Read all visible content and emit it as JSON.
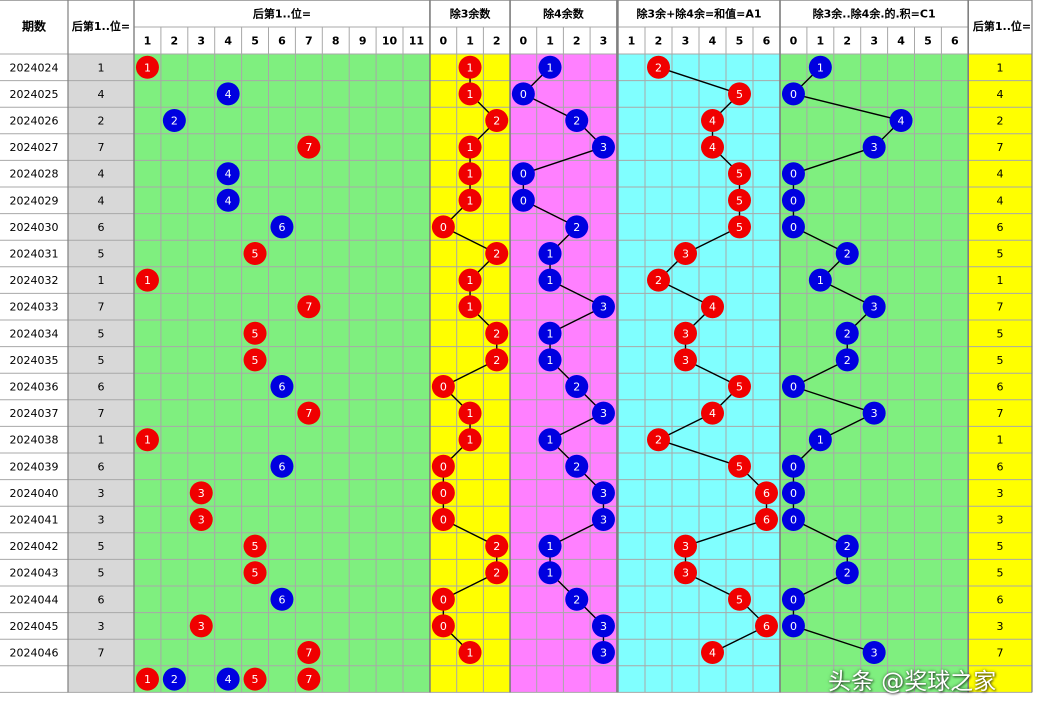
{
  "headers": {
    "period": "期数",
    "value": "后第1..位=",
    "sec_main": "后第1..位=",
    "sec_mod3": "除3余数",
    "sec_mod4": "除4余数",
    "sec_a1": "除3余+除4余=和值=A1",
    "sec_c1": "除3余..除4余.的.积=C1",
    "sec_right": "后第1..位="
  },
  "columns": {
    "main": [
      "1",
      "2",
      "3",
      "4",
      "5",
      "6",
      "7",
      "8",
      "9",
      "10",
      "11"
    ],
    "mod3": [
      "0",
      "1",
      "2"
    ],
    "mod4": [
      "0",
      "1",
      "2",
      "3"
    ],
    "a1": [
      "1",
      "2",
      "3",
      "4",
      "5",
      "6"
    ],
    "c1": [
      "0",
      "1",
      "2",
      "3",
      "4",
      "5",
      "6"
    ]
  },
  "colors": {
    "main_bg": "#7fef7f",
    "mod3_bg": "#ffff00",
    "mod4_bg": "#ff80ff",
    "a1_bg": "#80ffff",
    "c1_bg": "#7fef7f",
    "right_bg": "#ffff00",
    "grey_col": "#d8d8d8",
    "ball_red": "#f00000",
    "ball_blue": "#0000e0",
    "line": "#000000"
  },
  "chart_data": {
    "type": "table",
    "periods": [
      "2024024",
      "2024025",
      "2024026",
      "2024027",
      "2024028",
      "2024029",
      "2024030",
      "2024031",
      "2024032",
      "2024033",
      "2024034",
      "2024035",
      "2024036",
      "2024037",
      "2024038",
      "2024039",
      "2024040",
      "2024041",
      "2024042",
      "2024043",
      "2024044",
      "2024045",
      "2024046"
    ],
    "values": [
      1,
      4,
      2,
      7,
      4,
      4,
      6,
      5,
      1,
      7,
      5,
      5,
      6,
      7,
      1,
      6,
      3,
      3,
      5,
      5,
      6,
      3,
      7
    ],
    "mod3": [
      1,
      1,
      2,
      1,
      1,
      1,
      0,
      2,
      1,
      1,
      2,
      2,
      0,
      1,
      1,
      0,
      0,
      0,
      2,
      2,
      0,
      0,
      1
    ],
    "mod4": [
      1,
      0,
      2,
      3,
      0,
      0,
      2,
      1,
      1,
      3,
      1,
      1,
      2,
      3,
      1,
      2,
      3,
      3,
      1,
      1,
      2,
      3,
      3
    ],
    "a1": [
      2,
      5,
      4,
      4,
      5,
      5,
      5,
      3,
      2,
      4,
      3,
      3,
      5,
      4,
      2,
      5,
      6,
      6,
      3,
      3,
      5,
      6,
      4
    ],
    "c1": [
      1,
      0,
      4,
      3,
      0,
      0,
      0,
      2,
      1,
      3,
      2,
      2,
      0,
      3,
      1,
      0,
      0,
      0,
      2,
      2,
      0,
      0,
      3
    ],
    "summary_row": [
      1,
      2,
      4,
      5,
      7
    ]
  },
  "watermark": "头条 @奖球之家"
}
